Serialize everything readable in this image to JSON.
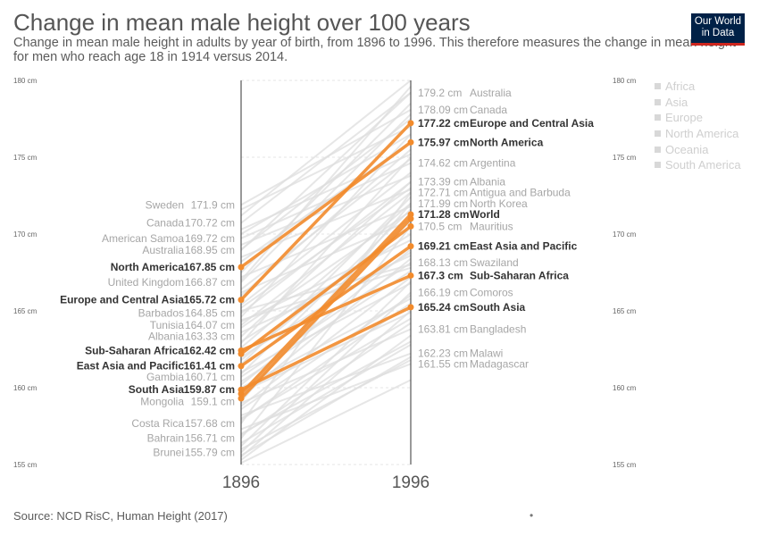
{
  "header": {
    "title": "Change in mean male height over 100 years",
    "subtitle": "Change in mean male height in adults by year of birth, from 1896 to 1996. This therefore measures the change in mean height for men who reach age 18 in 1914 versus 2014.",
    "logo_line1": "Our World",
    "logo_line2": "in Data"
  },
  "footer": {
    "source": "Source: NCD RisC, Human Height (2017)",
    "menu_glyph": "•"
  },
  "legend": {
    "items": [
      "Africa",
      "Asia",
      "Europe",
      "North America",
      "Oceania",
      "South America"
    ]
  },
  "colors": {
    "highlight": "#f28b2c",
    "background_line": "#dedede",
    "axis": "#333333",
    "label_bold": "#333333",
    "label_muted": "#a6a6a6"
  },
  "chart_data": {
    "type": "slope",
    "x": [
      "1896",
      "1996"
    ],
    "unit": "cm",
    "ylim": [
      155,
      180
    ],
    "y_ticks": [
      {
        "value": 155,
        "label": "155 cm"
      },
      {
        "value": 160,
        "label": "160 cm"
      },
      {
        "value": 165,
        "label": "165 cm"
      },
      {
        "value": 170,
        "label": "170 cm"
      },
      {
        "value": 175,
        "label": "175 cm"
      },
      {
        "value": 180,
        "label": "180 cm"
      }
    ],
    "highlighted": [
      {
        "name": "Europe and Central Asia",
        "start": 165.72,
        "end": 177.22,
        "start_label": "165.72 cm",
        "end_label": "177.22 cm"
      },
      {
        "name": "North America",
        "start": 167.85,
        "end": 175.97,
        "start_label": "167.85 cm",
        "end_label": "175.97 cm"
      },
      {
        "name": "World",
        "start": 159.6,
        "end": 171.28,
        "start_label": "",
        "end_label": "171.28 cm"
      },
      {
        "name": "East Asia and Pacific",
        "start": 161.41,
        "end": 169.21,
        "start_label": "161.41 cm",
        "end_label": "169.21 cm"
      },
      {
        "name": "Sub-Saharan Africa",
        "start": 162.42,
        "end": 167.3,
        "start_label": "162.42 cm",
        "end_label": "167.3 cm"
      },
      {
        "name": "South Asia",
        "start": 159.87,
        "end": 165.24,
        "start_label": "159.87 cm",
        "end_label": "165.24 cm"
      },
      {
        "name": "",
        "start": 159.3,
        "end": 171.0,
        "start_label": "",
        "end_label": ""
      },
      {
        "name": "",
        "start": 162.2,
        "end": 170.5,
        "start_label": "",
        "end_label": ""
      }
    ],
    "start_labels": [
      {
        "name": "Sweden",
        "value": "171.9 cm",
        "y": 171.9
      },
      {
        "name": "Canada",
        "value": "170.72 cm",
        "y": 170.72
      },
      {
        "name": "American Samoa",
        "value": "169.72 cm",
        "y": 169.72
      },
      {
        "name": "Australia",
        "value": "168.95 cm",
        "y": 168.95
      },
      {
        "name": "United Kingdom",
        "value": "166.87 cm",
        "y": 166.87
      },
      {
        "name": "Barbados",
        "value": "164.85 cm",
        "y": 164.85
      },
      {
        "name": "Tunisia",
        "value": "164.07 cm",
        "y": 164.07
      },
      {
        "name": "Albania",
        "value": "163.33 cm",
        "y": 163.33
      },
      {
        "name": "Gambia",
        "value": "160.71 cm",
        "y": 160.71
      },
      {
        "name": "Mongolia",
        "value": "159.1 cm",
        "y": 159.1
      },
      {
        "name": "Costa Rica",
        "value": "157.68 cm",
        "y": 157.68
      },
      {
        "name": "Bahrain",
        "value": "156.71 cm",
        "y": 156.71
      },
      {
        "name": "Brunei",
        "value": "155.79 cm",
        "y": 155.79
      }
    ],
    "end_labels": [
      {
        "name": "Australia",
        "value": "179.2 cm",
        "y": 179.2
      },
      {
        "name": "Canada",
        "value": "178.09 cm",
        "y": 178.09
      },
      {
        "name": "Argentina",
        "value": "174.62 cm",
        "y": 174.62
      },
      {
        "name": "Albania",
        "value": "173.39 cm",
        "y": 173.39
      },
      {
        "name": "Antigua and Barbuda",
        "value": "172.71 cm",
        "y": 172.71
      },
      {
        "name": "North Korea",
        "value": "171.99 cm",
        "y": 171.99
      },
      {
        "name": "Mauritius",
        "value": "170.5 cm",
        "y": 170.5
      },
      {
        "name": "Swaziland",
        "value": "168.13 cm",
        "y": 168.13
      },
      {
        "name": "Comoros",
        "value": "166.19 cm",
        "y": 166.19
      },
      {
        "name": "Bangladesh",
        "value": "163.81 cm",
        "y": 163.81
      },
      {
        "name": "Malawi",
        "value": "162.23 cm",
        "y": 162.23
      },
      {
        "name": "Madagascar",
        "value": "161.55 cm",
        "y": 161.55
      }
    ],
    "background_lines": [
      [
        171.9,
        178.09
      ],
      [
        170.72,
        179.2
      ],
      [
        169.72,
        174.62
      ],
      [
        168.95,
        179.2
      ],
      [
        166.87,
        177.8
      ],
      [
        164.85,
        173.39
      ],
      [
        164.07,
        172.71
      ],
      [
        163.33,
        173.39
      ],
      [
        160.71,
        168.13
      ],
      [
        159.1,
        171.99
      ],
      [
        157.68,
        172.71
      ],
      [
        156.71,
        170.5
      ],
      [
        155.79,
        166.19
      ],
      [
        171.2,
        180.0
      ],
      [
        170.0,
        176.5
      ],
      [
        169.0,
        177.5
      ],
      [
        168.2,
        176.0
      ],
      [
        167.5,
        178.5
      ],
      [
        166.0,
        175.5
      ],
      [
        165.4,
        174.0
      ],
      [
        164.6,
        176.5
      ],
      [
        163.9,
        171.5
      ],
      [
        163.0,
        170.0
      ],
      [
        162.6,
        172.0
      ],
      [
        162.0,
        168.8
      ],
      [
        161.8,
        170.8
      ],
      [
        161.0,
        166.8
      ],
      [
        160.4,
        167.6
      ],
      [
        160.0,
        165.8
      ],
      [
        159.7,
        164.9
      ],
      [
        159.0,
        163.81
      ],
      [
        158.6,
        166.0
      ],
      [
        158.2,
        162.23
      ],
      [
        158.0,
        164.5
      ],
      [
        157.3,
        161.55
      ],
      [
        157.0,
        163.0
      ],
      [
        156.4,
        162.8
      ],
      [
        156.0,
        161.8
      ],
      [
        155.5,
        165.0
      ],
      [
        155.3,
        163.4
      ],
      [
        155.1,
        160.5
      ],
      [
        167.0,
        179.6
      ],
      [
        166.4,
        174.9
      ],
      [
        165.2,
        173.0
      ],
      [
        164.3,
        169.6
      ],
      [
        163.6,
        168.6
      ],
      [
        162.9,
        175.0
      ],
      [
        161.5,
        172.4
      ],
      [
        160.9,
        171.6
      ],
      [
        160.2,
        169.0
      ],
      [
        159.4,
        168.4
      ],
      [
        158.8,
        167.2
      ],
      [
        157.9,
        165.5
      ],
      [
        156.9,
        164.2
      ],
      [
        156.2,
        166.9
      ],
      [
        155.6,
        162.0
      ],
      [
        171.6,
        177.0
      ],
      [
        170.3,
        175.2
      ],
      [
        169.3,
        173.8
      ],
      [
        168.5,
        172.9
      ],
      [
        167.2,
        171.8
      ],
      [
        166.2,
        170.9
      ],
      [
        165.0,
        168.0
      ],
      [
        164.4,
        167.8
      ]
    ]
  }
}
